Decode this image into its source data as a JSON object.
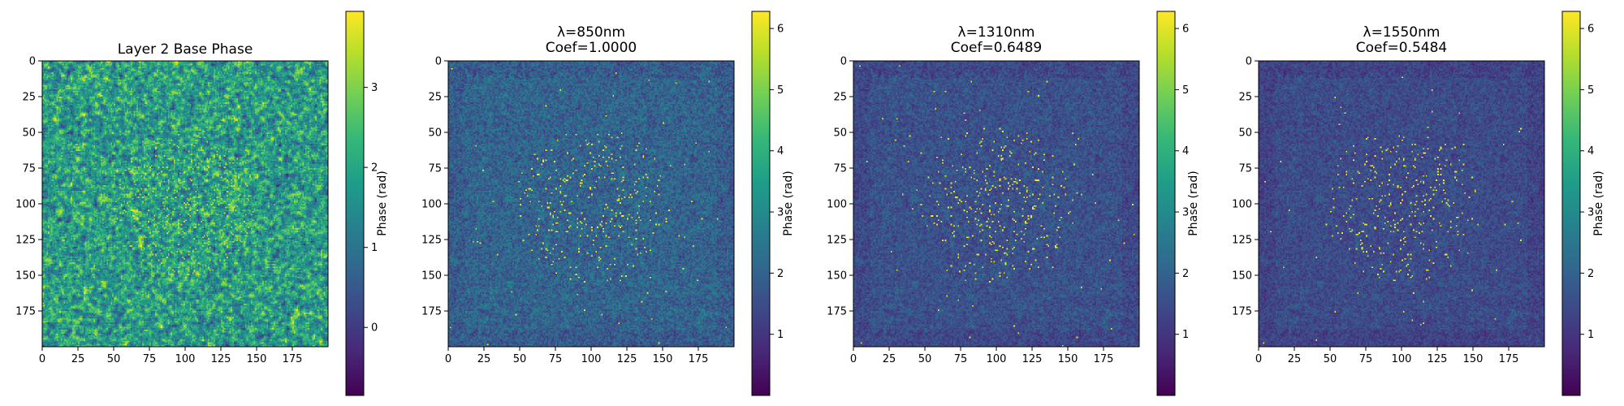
{
  "chart_data": [
    {
      "type": "heatmap",
      "title": [
        "Layer 2 Base Phase"
      ],
      "x_ticks": [
        0,
        25,
        50,
        75,
        100,
        125,
        150,
        175
      ],
      "y_ticks": [
        0,
        25,
        50,
        75,
        100,
        125,
        150,
        175
      ],
      "xlim": [
        0,
        200
      ],
      "ylim": [
        0,
        200
      ],
      "colormap": "viridis",
      "colorbar": {
        "label": "Phase (rad)",
        "range": [
          -0.85,
          3.95
        ],
        "ticks": [
          0,
          1,
          2,
          3
        ]
      },
      "pattern": "base"
    },
    {
      "type": "heatmap",
      "title": [
        "λ=850nm",
        "Coef=1.0000"
      ],
      "x_ticks": [
        0,
        25,
        50,
        75,
        100,
        125,
        150,
        175
      ],
      "y_ticks": [
        0,
        25,
        50,
        75,
        100,
        125,
        150,
        175
      ],
      "xlim": [
        0,
        200
      ],
      "ylim": [
        0,
        200
      ],
      "colormap": "viridis",
      "colorbar": {
        "label": "Phase (rad)",
        "range": [
          0,
          6.28
        ],
        "ticks": [
          1,
          2,
          3,
          4,
          5,
          6
        ]
      },
      "pattern": "wavelength",
      "coef": 1.0
    },
    {
      "type": "heatmap",
      "title": [
        "λ=1310nm",
        "Coef=0.6489"
      ],
      "x_ticks": [
        0,
        25,
        50,
        75,
        100,
        125,
        150,
        175
      ],
      "y_ticks": [
        0,
        25,
        50,
        75,
        100,
        125,
        150,
        175
      ],
      "xlim": [
        0,
        200
      ],
      "ylim": [
        0,
        200
      ],
      "colormap": "viridis",
      "colorbar": {
        "label": "Phase (rad)",
        "range": [
          0,
          6.28
        ],
        "ticks": [
          1,
          2,
          3,
          4,
          5,
          6
        ]
      },
      "pattern": "wavelength",
      "coef": 0.6489
    },
    {
      "type": "heatmap",
      "title": [
        "λ=1550nm",
        "Coef=0.5484"
      ],
      "x_ticks": [
        0,
        25,
        50,
        75,
        100,
        125,
        150,
        175
      ],
      "y_ticks": [
        0,
        25,
        50,
        75,
        100,
        125,
        150,
        175
      ],
      "xlim": [
        0,
        200
      ],
      "ylim": [
        0,
        200
      ],
      "colormap": "viridis",
      "colorbar": {
        "label": "Phase (rad)",
        "range": [
          0,
          6.28
        ],
        "ticks": [
          1,
          2,
          3,
          4,
          5,
          6
        ]
      },
      "pattern": "wavelength",
      "coef": 0.5484
    }
  ]
}
